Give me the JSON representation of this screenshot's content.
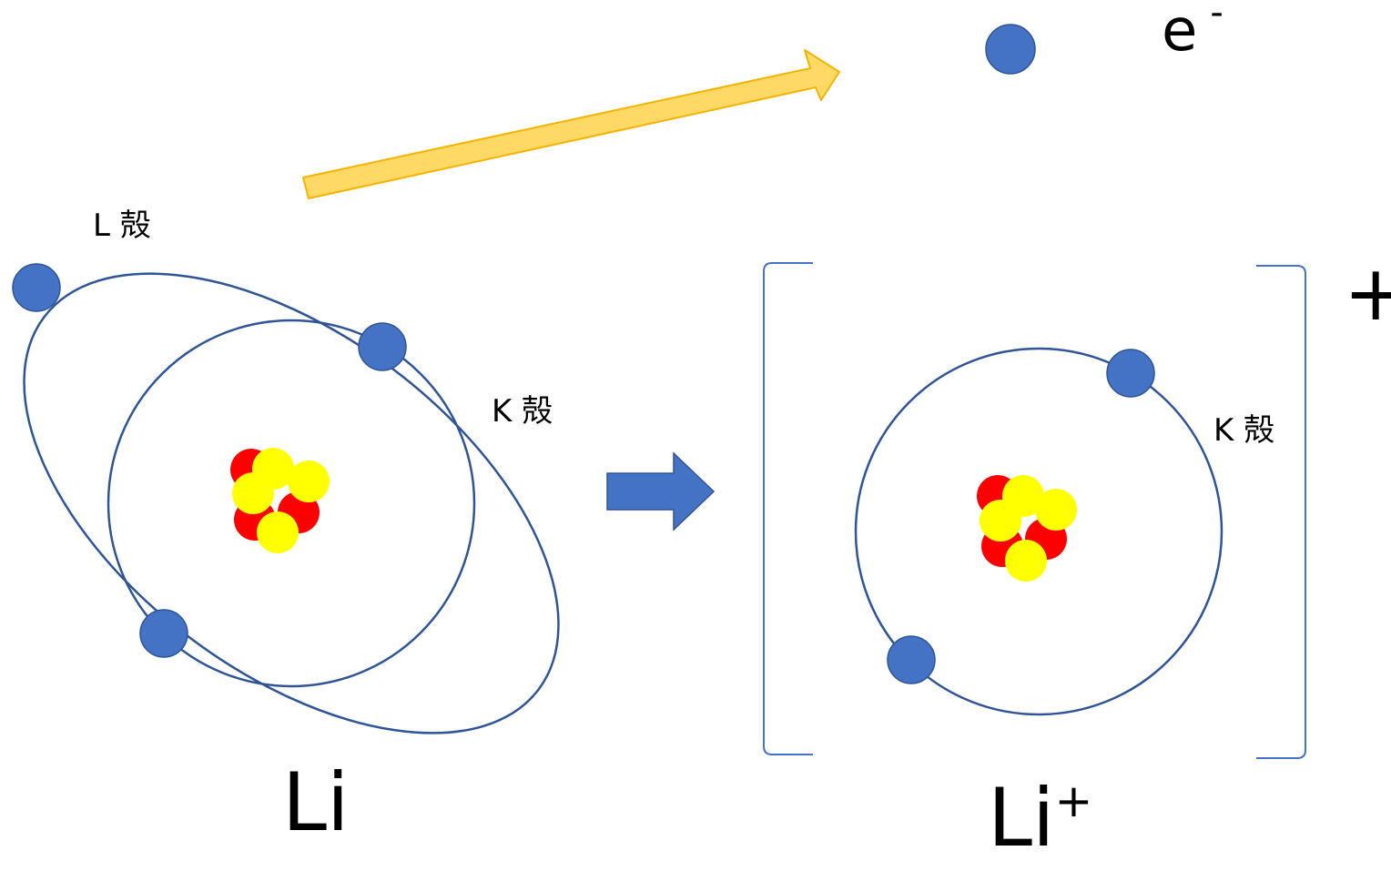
{
  "labels": {
    "l_shell": "L 殻",
    "k_shell_atom": "K 殻",
    "k_shell_ion": "K 殻",
    "atom_symbol": "Li",
    "ion_symbol": "Li",
    "ion_charge": "+",
    "electron_symbol": "e",
    "electron_charge": "-",
    "bracket_charge": "+"
  },
  "colors": {
    "electron": "#4472c4",
    "orbit": "#2f5597",
    "proton": "#ff0000",
    "neutron": "#ffff00",
    "ejection_arrow": "#ffd966",
    "ejection_arrow_stroke": "#f4b400",
    "reaction_arrow": "#4472c4",
    "bracket": "#4472c4"
  }
}
